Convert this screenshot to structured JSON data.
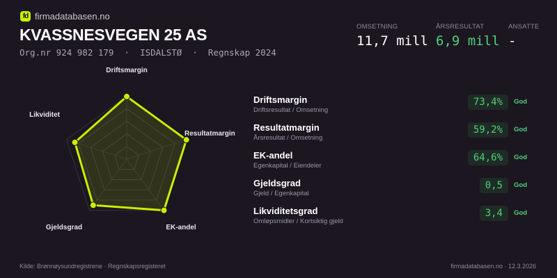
{
  "brand": {
    "logo_text": "fd",
    "name": "firmadatabasen.no"
  },
  "company": {
    "name": "KVASSNESVEGEN 25 AS",
    "subtitle": "Org.nr 924 982 179  ·  ISDALSTØ  ·  Regnskap 2024"
  },
  "kpis": [
    {
      "label": "OMSETNING",
      "value": "11,7 mill",
      "color": "#ffffff"
    },
    {
      "label": "ÅRSRESULTAT",
      "value": "6,9 mill",
      "color": "#4fd17c"
    },
    {
      "label": "ANSATTE",
      "value": "-",
      "color": "#ffffff"
    }
  ],
  "chart_data": {
    "type": "radar",
    "axes": [
      "Driftsmargin",
      "Resultatmargin",
      "EK-andel",
      "Gjeldsgrad",
      "Likviditet"
    ],
    "scores": [
      0.99,
      0.99,
      1.0,
      0.9,
      0.86
    ],
    "rings": 5,
    "color": "#c8f000"
  },
  "metrics": [
    {
      "name": "Driftsmargin",
      "desc": "Driftsresultat / Omsetning",
      "value": "73,4%",
      "rating": "God"
    },
    {
      "name": "Resultatmargin",
      "desc": "Årsresultat / Omsetning",
      "value": "59,2%",
      "rating": "God"
    },
    {
      "name": "EK-andel",
      "desc": "Egenkapital / Eiendeler",
      "value": "64,6%",
      "rating": "God"
    },
    {
      "name": "Gjeldsgrad",
      "desc": "Gjeld / Egenkapital",
      "value": "0,5",
      "rating": "God"
    },
    {
      "name": "Likviditetsgrad",
      "desc": "Omløpsmidler / Kortsiktig gjeld",
      "value": "3,4",
      "rating": "God"
    }
  ],
  "footer": {
    "source": "Kilde: Brønnøysundregistrene · Regnskapsregisteret",
    "right": "firmadatabasen.no · 12.3.2026"
  }
}
